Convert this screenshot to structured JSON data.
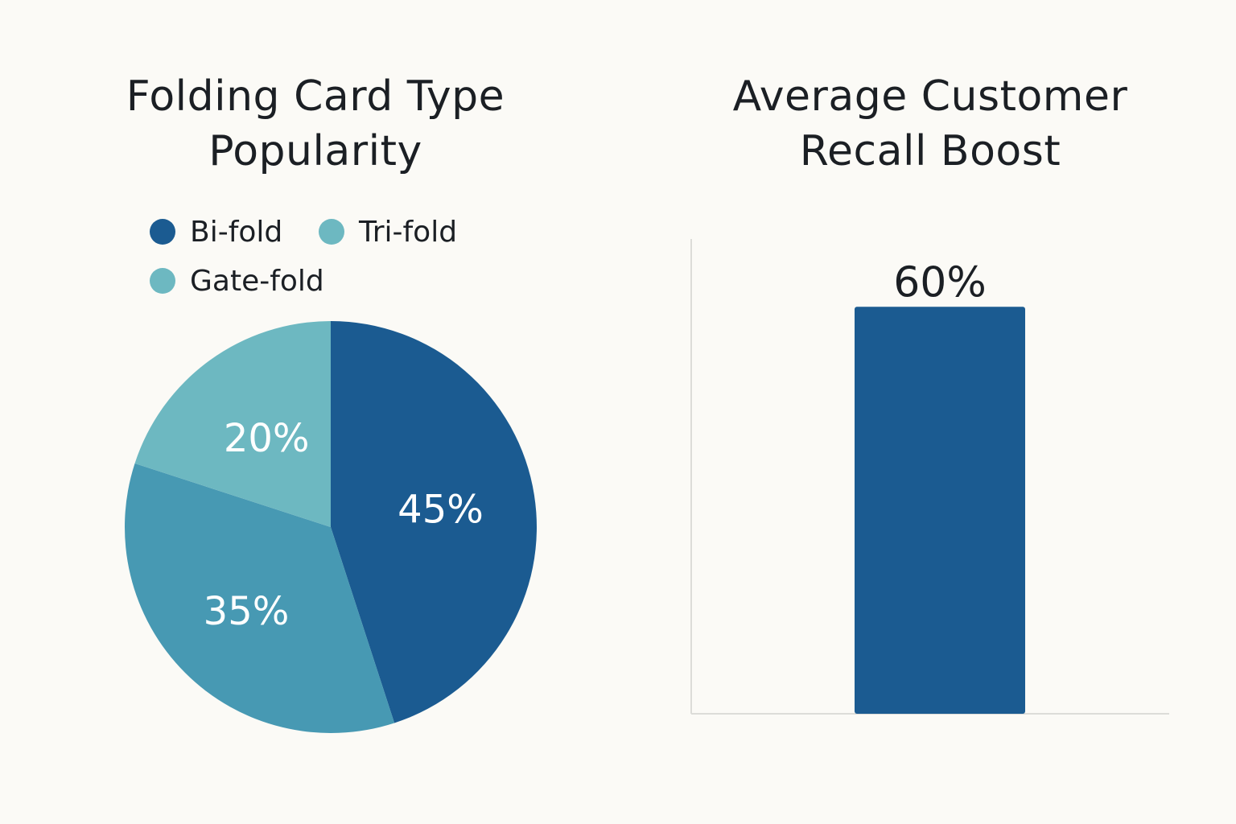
{
  "colors": {
    "background": "#fbfaf6",
    "bi_fold": "#1b5b91",
    "tri_fold": "#4799b3",
    "gate_fold": "#6db8c1",
    "bar": "#1b5b91",
    "axis": "#dcdcd8"
  },
  "chart_data": [
    {
      "type": "pie",
      "title": "Folding Card Type Popularity",
      "title_lines": [
        "Folding Card Type",
        "Popularity"
      ],
      "legend": [
        "Bi-fold",
        "Tri-fold",
        "Gate-fold"
      ],
      "legend_position": "top",
      "slices": [
        {
          "label": "Bi-fold",
          "value": 45,
          "display": "45%",
          "color": "#1b5b91"
        },
        {
          "label": "Tri-fold",
          "value": 35,
          "display": "35%",
          "color": "#4799b3"
        },
        {
          "label": "Gate-fold",
          "value": 20,
          "display": "20%",
          "color": "#6db8c1"
        }
      ]
    },
    {
      "type": "bar",
      "title": "Average Customer Recall Boost",
      "title_lines": [
        "Average Customer",
        "Recall Boost"
      ],
      "categories": [
        ""
      ],
      "values": [
        60
      ],
      "data_labels": [
        "60%"
      ],
      "xlabel": "",
      "ylabel": "",
      "ylim": [
        0,
        70
      ],
      "grid": false
    }
  ]
}
